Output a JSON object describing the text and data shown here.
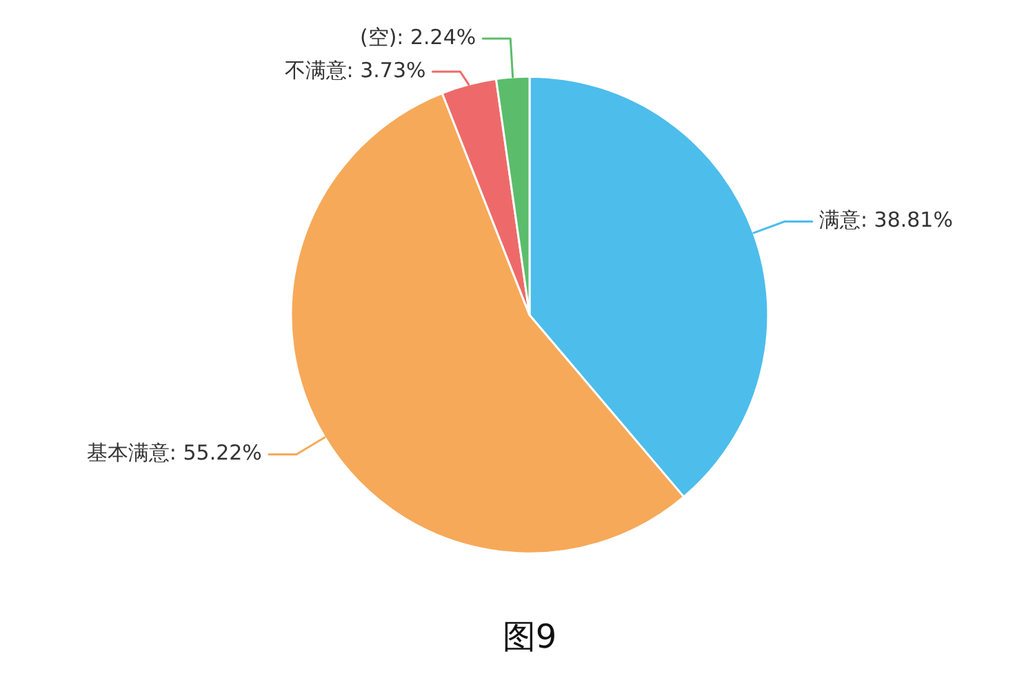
{
  "chart_data": {
    "type": "pie",
    "title": "图9",
    "categories": [
      "满意",
      "基本满意",
      "不满意",
      "(空)"
    ],
    "values": [
      38.81,
      55.22,
      3.73,
      2.24
    ],
    "colors": [
      "#4dbdeb",
      "#f6a959",
      "#ee6a6a",
      "#5bbd6b"
    ],
    "value_labels": [
      "38.81%",
      "55.22%",
      "3.73%",
      "2.24%"
    ]
  }
}
